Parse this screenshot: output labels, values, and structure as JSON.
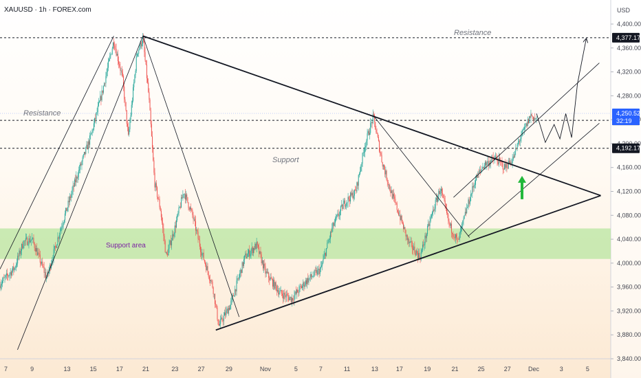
{
  "header": {
    "symbol_line": "XAUUSD · 1h · FOREX.com",
    "currency": "USD"
  },
  "annotations": {
    "resistance_top": "Resistance",
    "resistance_left": "Resistance",
    "support": "Support",
    "support_area": "Support area"
  },
  "colors": {
    "up_candle": "#26a69a",
    "down_candle": "#ef5350",
    "support_zone": "#b8e6a0",
    "arrow": "#22b83a",
    "last_price_tag": "#2962ff",
    "level_tag": "#131722"
  },
  "chart_data": {
    "type": "candlestick",
    "symbol": "XAUUSD",
    "timeframe": "1h",
    "ylim": [
      3840,
      4410
    ],
    "y_ticks": [
      4400,
      4360,
      4320,
      4280,
      4240,
      4200,
      4160,
      4120,
      4080,
      4040,
      4000,
      3960,
      3920,
      3880,
      3840
    ],
    "y_tick_labels": [
      "4,400.00",
      "4,360.00",
      "4,320.00",
      "4,280.00",
      "4,240.00",
      "4,200.00",
      "4,160.00",
      "4,120.00",
      "4,080.00",
      "4,040.00",
      "4,000.00",
      "3,960.00",
      "3,920.00",
      "3,880.00",
      "3,840.00"
    ],
    "x_ticks": [
      {
        "label": "7",
        "t": 4
      },
      {
        "label": "9",
        "t": 22
      },
      {
        "label": "13",
        "t": 46
      },
      {
        "label": "15",
        "t": 64
      },
      {
        "label": "17",
        "t": 82
      },
      {
        "label": "21",
        "t": 100
      },
      {
        "label": "23",
        "t": 120
      },
      {
        "label": "27",
        "t": 138
      },
      {
        "label": "29",
        "t": 157
      },
      {
        "label": "Nov",
        "t": 182
      },
      {
        "label": "5",
        "t": 203
      },
      {
        "label": "7",
        "t": 220
      },
      {
        "label": "11",
        "t": 238
      },
      {
        "label": "13",
        "t": 257
      },
      {
        "label": "17",
        "t": 274
      },
      {
        "label": "19",
        "t": 293
      },
      {
        "label": "21",
        "t": 312
      },
      {
        "label": "25",
        "t": 330
      },
      {
        "label": "27",
        "t": 348
      },
      {
        "label": "Dec",
        "t": 366
      },
      {
        "label": "3",
        "t": 385
      },
      {
        "label": "5",
        "t": 403
      }
    ],
    "path_points": [
      [
        0,
        3965
      ],
      [
        10,
        3992
      ],
      [
        16,
        4035
      ],
      [
        22,
        4040
      ],
      [
        32,
        3975
      ],
      [
        40,
        4045
      ],
      [
        52,
        4140
      ],
      [
        62,
        4210
      ],
      [
        70,
        4285
      ],
      [
        78,
        4372
      ],
      [
        84,
        4310
      ],
      [
        88,
        4210
      ],
      [
        94,
        4352
      ],
      [
        98,
        4375
      ],
      [
        102,
        4280
      ],
      [
        106,
        4135
      ],
      [
        110,
        4090
      ],
      [
        114,
        4010
      ],
      [
        120,
        4060
      ],
      [
        126,
        4120
      ],
      [
        132,
        4080
      ],
      [
        138,
        4020
      ],
      [
        146,
        3960
      ],
      [
        150,
        3895
      ],
      [
        158,
        3930
      ],
      [
        168,
        4010
      ],
      [
        176,
        4030
      ],
      [
        182,
        3985
      ],
      [
        192,
        3950
      ],
      [
        200,
        3940
      ],
      [
        210,
        3970
      ],
      [
        220,
        3990
      ],
      [
        228,
        4060
      ],
      [
        236,
        4100
      ],
      [
        244,
        4120
      ],
      [
        250,
        4195
      ],
      [
        256,
        4245
      ],
      [
        262,
        4170
      ],
      [
        268,
        4120
      ],
      [
        274,
        4080
      ],
      [
        280,
        4035
      ],
      [
        288,
        4010
      ],
      [
        296,
        4080
      ],
      [
        302,
        4125
      ],
      [
        308,
        4065
      ],
      [
        314,
        4035
      ],
      [
        320,
        4090
      ],
      [
        326,
        4140
      ],
      [
        332,
        4165
      ],
      [
        340,
        4175
      ],
      [
        346,
        4160
      ],
      [
        352,
        4175
      ],
      [
        356,
        4205
      ],
      [
        360,
        4225
      ],
      [
        364,
        4248
      ],
      [
        368,
        4239
      ]
    ],
    "horizontal_levels": [
      {
        "price": 4377.17,
        "label": "4,377.17"
      },
      {
        "price": 4238.93,
        "label": "4,238.93"
      },
      {
        "price": 4192.17,
        "label": "4,192.17"
      }
    ],
    "last_price": {
      "price": 4250.52,
      "label": "4,250.52",
      "countdown": "32:19"
    },
    "support_zone": [
      4007,
      4058
    ],
    "triangle": {
      "upper": [
        [
          98,
          4380
        ],
        [
          412,
          4113
        ]
      ],
      "lower": [
        [
          148,
          3888
        ],
        [
          412,
          4113
        ]
      ],
      "apex": [
        412,
        4113
      ]
    },
    "thin_lines": [
      [
        [
          12,
          3855
        ],
        [
          98,
          4380
        ]
      ],
      [
        [
          0,
          3990
        ],
        [
          78,
          4380
        ]
      ],
      [
        [
          98,
          4380
        ],
        [
          164,
          3910
        ]
      ],
      [
        [
          256,
          4247
        ],
        [
          322,
          4043
        ]
      ],
      [
        [
          321,
          4045
        ],
        [
          411,
          4234
        ]
      ],
      [
        [
          311,
          4110
        ],
        [
          411,
          4335
        ]
      ]
    ],
    "projection": [
      [
        368,
        4250
      ],
      [
        374,
        4202
      ],
      [
        380,
        4232
      ],
      [
        384,
        4208
      ],
      [
        388,
        4250
      ],
      [
        392,
        4210
      ],
      [
        396,
        4300
      ],
      [
        402,
        4375
      ]
    ],
    "arrow_up_at": [
      358,
      4146
    ],
    "xlim": [
      0,
      418
    ]
  }
}
